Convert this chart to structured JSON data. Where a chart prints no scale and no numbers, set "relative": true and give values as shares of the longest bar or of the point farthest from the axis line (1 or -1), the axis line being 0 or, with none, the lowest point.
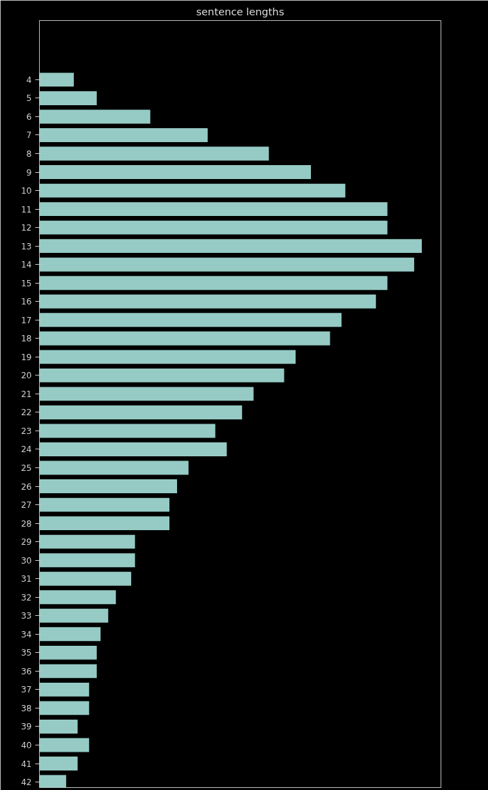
{
  "chart_data": {
    "type": "bar",
    "orientation": "horizontal",
    "relative": true,
    "title": "sentence lengths",
    "categories": [
      "4",
      "5",
      "6",
      "7",
      "8",
      "9",
      "10",
      "11",
      "12",
      "13",
      "14",
      "15",
      "16",
      "17",
      "18",
      "19",
      "20",
      "21",
      "22",
      "23",
      "24",
      "25",
      "26",
      "27",
      "28",
      "29",
      "30",
      "31",
      "32",
      "33",
      "34",
      "35",
      "36",
      "37",
      "38",
      "39",
      "40",
      "41",
      "42"
    ],
    "values": [
      0.09,
      0.15,
      0.29,
      0.44,
      0.6,
      0.71,
      0.8,
      0.91,
      0.91,
      1,
      0.98,
      0.91,
      0.88,
      0.79,
      0.76,
      0.67,
      0.64,
      0.56,
      0.53,
      0.46,
      0.49,
      0.39,
      0.36,
      0.34,
      0.34,
      0.25,
      0.25,
      0.24,
      0.2,
      0.18,
      0.16,
      0.15,
      0.15,
      0.13,
      0.13,
      0.1,
      0.13,
      0.1,
      0.07
    ],
    "color": "#96cbc5",
    "grid": false
  }
}
